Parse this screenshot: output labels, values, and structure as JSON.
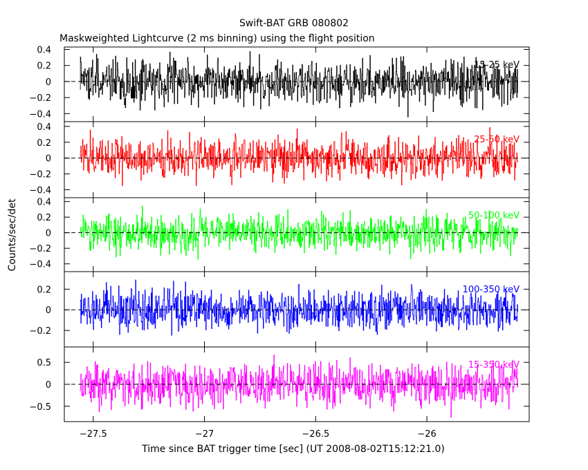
{
  "chart_data": {
    "type": "line",
    "title": "Swift-BAT GRB 080802",
    "subtitle": "Maskweighted Lightcurve (2 ms binning) using the flight position",
    "xlabel": "Time since BAT trigger time [sec] (UT 2008-08-02T15:12:21.0)",
    "ylabel": "Counts/sec/det",
    "xlim": [
      -27.63,
      -25.54
    ],
    "x_data_range": [
      -27.56,
      -25.59
    ],
    "bin_width_sec": 0.002,
    "x_ticks": [
      -27.5,
      -27,
      -26.5,
      -26
    ],
    "x_tick_labels": [
      "−27.5",
      "−27",
      "−26.5",
      "−26"
    ],
    "zero_line": "dashed",
    "panels": [
      {
        "band": "15-25 keV",
        "color": "#000000",
        "ylim": [
          -0.5,
          0.43
        ],
        "y_ticks": [
          -0.4,
          -0.2,
          0,
          0.2,
          0.4
        ],
        "y_tick_labels": [
          "−0.4",
          "−0.2",
          "0",
          "0.2",
          "0.4"
        ],
        "noise_sigma": 0.14,
        "peak_amplitude": 0.45
      },
      {
        "band": "25-50 keV",
        "color": "#ff0000",
        "ylim": [
          -0.5,
          0.46
        ],
        "y_ticks": [
          -0.4,
          -0.2,
          0,
          0.2,
          0.4
        ],
        "y_tick_labels": [
          "−0.4",
          "−0.2",
          "0",
          "0.2",
          "0.4"
        ],
        "noise_sigma": 0.13,
        "peak_amplitude": 0.45
      },
      {
        "band": "50-100 keV",
        "color": "#00ff00",
        "ylim": [
          -0.5,
          0.45
        ],
        "y_ticks": [
          -0.4,
          -0.2,
          0,
          0.2,
          0.4
        ],
        "y_tick_labels": [
          "−0.4",
          "−0.2",
          "0",
          "0.2",
          "0.4"
        ],
        "noise_sigma": 0.12,
        "peak_amplitude": 0.42
      },
      {
        "band": "100-350 keV",
        "color": "#0000ff",
        "ylim": [
          -0.36,
          0.37
        ],
        "y_ticks": [
          -0.2,
          0,
          0.2
        ],
        "y_tick_labels": [
          "−0.2",
          "0",
          "0.2"
        ],
        "noise_sigma": 0.1,
        "peak_amplitude": 0.36
      },
      {
        "band": "15-350 keV",
        "color": "#ff00ff",
        "ylim": [
          -0.85,
          0.85
        ],
        "y_ticks": [
          -0.5,
          0,
          0.5
        ],
        "y_tick_labels": [
          "−0.5",
          "0",
          "0.5"
        ],
        "noise_sigma": 0.25,
        "peak_amplitude": 0.85
      }
    ]
  }
}
